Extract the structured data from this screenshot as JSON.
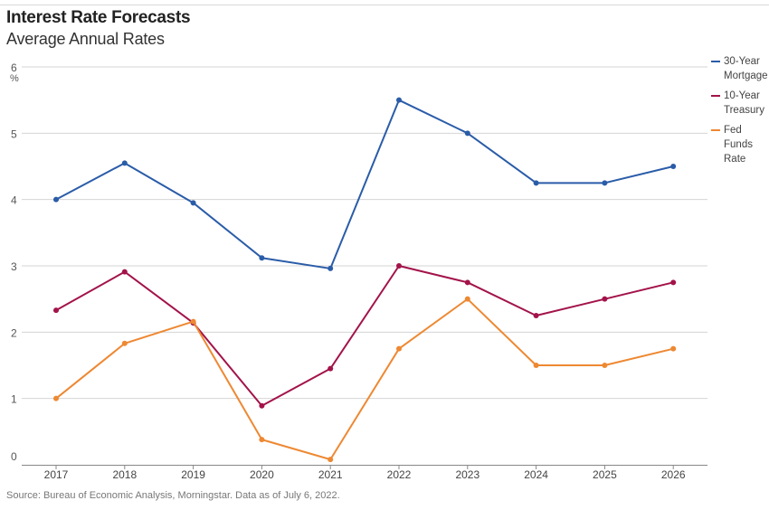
{
  "header": {
    "title": "Interest Rate Forecasts",
    "subtitle": "Average Annual Rates"
  },
  "footer": {
    "source": "Source: Bureau of Economic Analysis, Morningstar. Data as of July 6, 2022."
  },
  "chart_data": {
    "type": "line",
    "title": "Interest Rate Forecasts",
    "subtitle": "Average Annual Rates",
    "xlabel": "",
    "ylabel": "%",
    "x": [
      "2017",
      "2018",
      "2019",
      "2020",
      "2021",
      "2022",
      "2023",
      "2024",
      "2025",
      "2026"
    ],
    "ylim": [
      0,
      6
    ],
    "yticks": [
      "0",
      "1",
      "2",
      "3",
      "4",
      "5",
      "6"
    ],
    "grid": true,
    "legend_position": "right",
    "series": [
      {
        "name": "30-Year Mortgage",
        "color": "#2a5ca8",
        "values": [
          4.0,
          4.55,
          3.95,
          3.12,
          2.96,
          5.5,
          5.0,
          4.25,
          4.25,
          4.5
        ]
      },
      {
        "name": "10-Year Treasury",
        "color": "#a3134a",
        "values": [
          2.33,
          2.91,
          2.14,
          0.89,
          1.45,
          3.0,
          2.75,
          2.25,
          2.5,
          2.75
        ]
      },
      {
        "name": "Fed Funds Rate",
        "color": "#ee8832",
        "values": [
          1.0,
          1.83,
          2.16,
          0.38,
          0.08,
          1.75,
          2.5,
          1.5,
          1.5,
          1.75
        ]
      }
    ]
  }
}
